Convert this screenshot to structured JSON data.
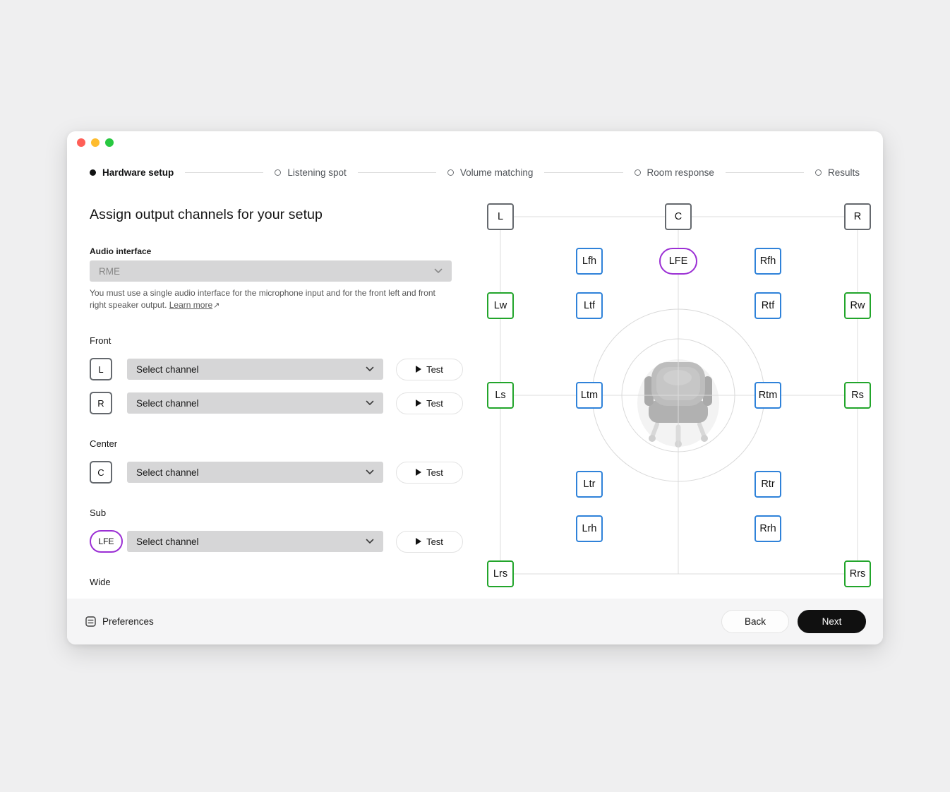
{
  "window_controls": {
    "close_color": "#ff5f57",
    "minimize_color": "#febc2e",
    "zoom_color": "#28c840"
  },
  "stepper": {
    "steps": [
      {
        "label": "Hardware setup",
        "state": "active"
      },
      {
        "label": "Listening spot",
        "state": "upcoming"
      },
      {
        "label": "Volume matching",
        "state": "upcoming"
      },
      {
        "label": "Room response",
        "state": "upcoming"
      },
      {
        "label": "Results",
        "state": "upcoming"
      }
    ]
  },
  "panel": {
    "title": "Assign output channels for your setup",
    "audio_interface_label": "Audio interface",
    "audio_interface_value": "RME",
    "help_text": "You must use a single audio interface for the microphone input and for the front left and front right speaker output.",
    "learn_more_label": "Learn more",
    "learn_more_arrow": "↗",
    "select_placeholder": "Select channel",
    "test_label": "Test",
    "sections": [
      {
        "label": "Front",
        "channels": [
          {
            "id": "L",
            "shape": "square"
          },
          {
            "id": "R",
            "shape": "square"
          }
        ]
      },
      {
        "label": "Center",
        "channels": [
          {
            "id": "C",
            "shape": "square"
          }
        ]
      },
      {
        "label": "Sub",
        "channels": [
          {
            "id": "LFE",
            "shape": "pill"
          }
        ]
      },
      {
        "label": "Wide",
        "channels": []
      }
    ]
  },
  "diagram": {
    "nodes": [
      {
        "id": "L",
        "col": 0,
        "row": 0,
        "color": "gray",
        "shape": "square"
      },
      {
        "id": "C",
        "col": 2,
        "row": 0,
        "color": "gray",
        "shape": "square"
      },
      {
        "id": "R",
        "col": 4,
        "row": 0,
        "color": "gray",
        "shape": "square"
      },
      {
        "id": "Lfh",
        "col": 1,
        "row": 1,
        "color": "blue",
        "shape": "square"
      },
      {
        "id": "LFE",
        "col": 2,
        "row": 1,
        "color": "purple",
        "shape": "pill"
      },
      {
        "id": "Rfh",
        "col": 3,
        "row": 1,
        "color": "blue",
        "shape": "square"
      },
      {
        "id": "Lw",
        "col": 0,
        "row": 2,
        "color": "green",
        "shape": "square"
      },
      {
        "id": "Ltf",
        "col": 1,
        "row": 2,
        "color": "blue",
        "shape": "square"
      },
      {
        "id": "Rtf",
        "col": 3,
        "row": 2,
        "color": "blue",
        "shape": "square"
      },
      {
        "id": "Rw",
        "col": 4,
        "row": 2,
        "color": "green",
        "shape": "square"
      },
      {
        "id": "Ls",
        "col": 0,
        "row": 3,
        "color": "green",
        "shape": "square"
      },
      {
        "id": "Ltm",
        "col": 1,
        "row": 3,
        "color": "blue",
        "shape": "square"
      },
      {
        "id": "Rtm",
        "col": 3,
        "row": 3,
        "color": "blue",
        "shape": "square"
      },
      {
        "id": "Rs",
        "col": 4,
        "row": 3,
        "color": "green",
        "shape": "square"
      },
      {
        "id": "Ltr",
        "col": 1,
        "row": 4,
        "color": "blue",
        "shape": "square"
      },
      {
        "id": "Rtr",
        "col": 3,
        "row": 4,
        "color": "blue",
        "shape": "square"
      },
      {
        "id": "Lrh",
        "col": 1,
        "row": 5,
        "color": "blue",
        "shape": "square"
      },
      {
        "id": "Rrh",
        "col": 3,
        "row": 5,
        "color": "blue",
        "shape": "square"
      },
      {
        "id": "Lrs",
        "col": 0,
        "row": 6,
        "color": "green",
        "shape": "square"
      },
      {
        "id": "Rrs",
        "col": 4,
        "row": 6,
        "color": "green",
        "shape": "square"
      }
    ]
  },
  "footer": {
    "preferences_label": "Preferences",
    "back_label": "Back",
    "next_label": "Next"
  },
  "colors": {
    "accent_blue": "#2f82d9",
    "accent_green": "#22a52b",
    "accent_purple": "#9b2fd4",
    "node_gray": "#65696e"
  }
}
